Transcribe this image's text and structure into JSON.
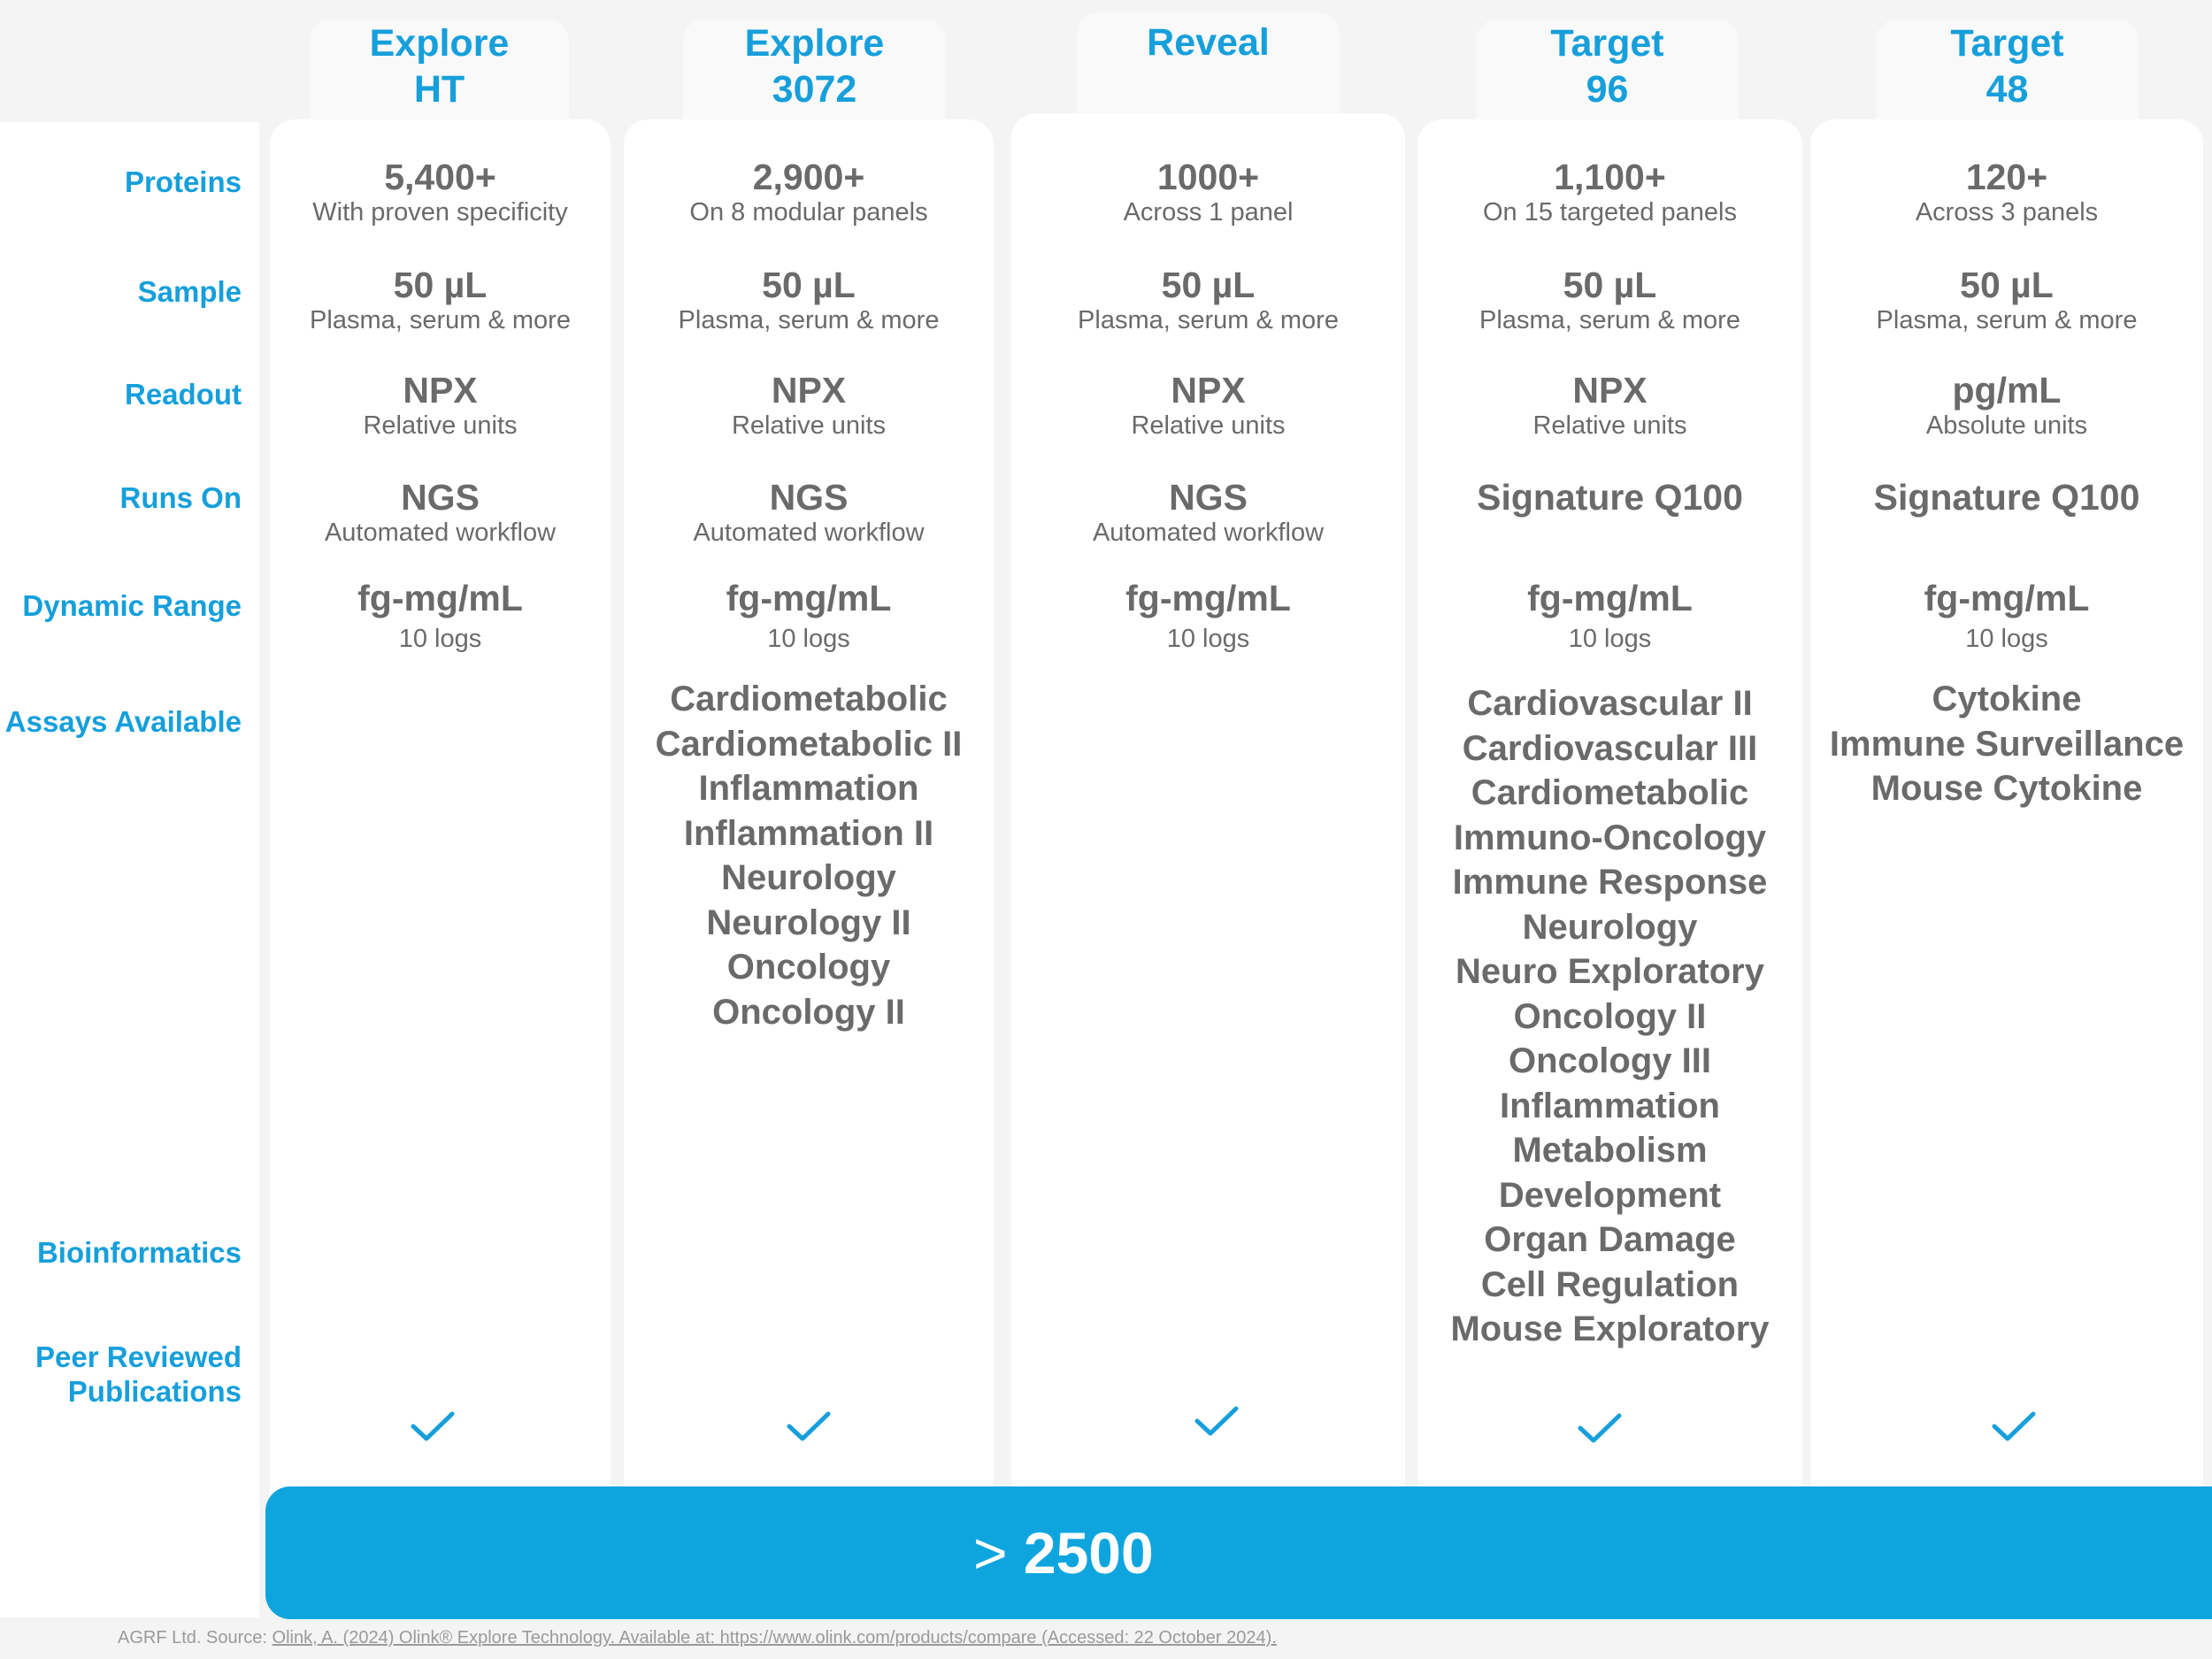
{
  "row_labels": {
    "proteins": "Proteins",
    "sample": "Sample",
    "readout": "Readout",
    "runs_on": "Runs On",
    "dynamic_range": "Dynamic Range",
    "assays_available": "Assays Available",
    "bioinformatics": "Bioinformatics",
    "peer_reviewed_line1": "Peer Reviewed",
    "peer_reviewed_line2": "Publications"
  },
  "columns": [
    {
      "title_line1": "Explore",
      "title_line2": "HT",
      "proteins": {
        "value": "5,400+",
        "note": "With proven specificity"
      },
      "sample": {
        "value": "50 µL",
        "note": "Plasma, serum & more"
      },
      "readout": {
        "value": "NPX",
        "note": "Relative units"
      },
      "runs_on": {
        "value": "NGS",
        "note": "Automated workflow"
      },
      "dynamic_range": {
        "value": "fg-mg/mL",
        "note": "10 logs"
      },
      "assays": [],
      "bioinformatics": true
    },
    {
      "title_line1": "Explore",
      "title_line2": "3072",
      "proteins": {
        "value": "2,900+",
        "note": "On 8 modular panels"
      },
      "sample": {
        "value": "50 µL",
        "note": "Plasma, serum & more"
      },
      "readout": {
        "value": "NPX",
        "note": "Relative units"
      },
      "runs_on": {
        "value": "NGS",
        "note": "Automated workflow"
      },
      "dynamic_range": {
        "value": "fg-mg/mL",
        "note": "10 logs"
      },
      "assays": [
        "Cardiometabolic",
        "Cardiometabolic II",
        "Inflammation",
        "Inflammation II",
        "Neurology",
        "Neurology II",
        "Oncology",
        "Oncology II"
      ],
      "bioinformatics": true
    },
    {
      "title_line1": "Reveal",
      "title_line2": "",
      "proteins": {
        "value": "1000+",
        "note": "Across 1 panel"
      },
      "sample": {
        "value": "50 µL",
        "note": "Plasma, serum & more"
      },
      "readout": {
        "value": "NPX",
        "note": "Relative units"
      },
      "runs_on": {
        "value": "NGS",
        "note": "Automated workflow"
      },
      "dynamic_range": {
        "value": "fg-mg/mL",
        "note": "10 logs"
      },
      "assays": [],
      "bioinformatics": true
    },
    {
      "title_line1": "Target",
      "title_line2": "96",
      "proteins": {
        "value": "1,100+",
        "note": "On 15 targeted panels"
      },
      "sample": {
        "value": "50 µL",
        "note": "Plasma, serum & more"
      },
      "readout": {
        "value": "NPX",
        "note": "Relative units"
      },
      "runs_on": {
        "value": "Signature Q100",
        "note": ""
      },
      "dynamic_range": {
        "value": "fg-mg/mL",
        "note": "10 logs"
      },
      "assays": [
        "Cardiovascular II",
        "Cardiovascular III",
        "Cardiometabolic",
        "Immuno-Oncology",
        "Immune Response",
        "Neurology",
        "Neuro Exploratory",
        "Oncology II",
        "Oncology III",
        "Inflammation",
        "Metabolism",
        "Development",
        "Organ Damage",
        "Cell Regulation",
        "Mouse Exploratory"
      ],
      "bioinformatics": true
    },
    {
      "title_line1": "Target",
      "title_line2": "48",
      "proteins": {
        "value": "120+",
        "note": "Across 3 panels"
      },
      "sample": {
        "value": "50 µL",
        "note": "Plasma, serum & more"
      },
      "readout": {
        "value": "pg/mL",
        "note": "Absolute units"
      },
      "runs_on": {
        "value": "Signature Q100",
        "note": ""
      },
      "dynamic_range": {
        "value": "fg-mg/mL",
        "note": "10 logs"
      },
      "assays": [
        "Cytokine",
        "Immune Surveillance",
        "Mouse Cytokine"
      ],
      "bioinformatics": true
    }
  ],
  "publications": {
    "prefix": ">",
    "value": "2500"
  },
  "footer": {
    "source": "AGRF Ltd. Source: ",
    "reference": "Olink, A. (2024) Olink® Explore Technology. Available at: https://www.olink.com/products/compare (Accessed: 22 October 2024)."
  },
  "colors": {
    "accent": "#169fdb",
    "banner": "#0ea5df",
    "text": "#6a6a6a",
    "background": "#f4f4f4"
  },
  "icons": {
    "bioinformatics": "check-icon"
  }
}
